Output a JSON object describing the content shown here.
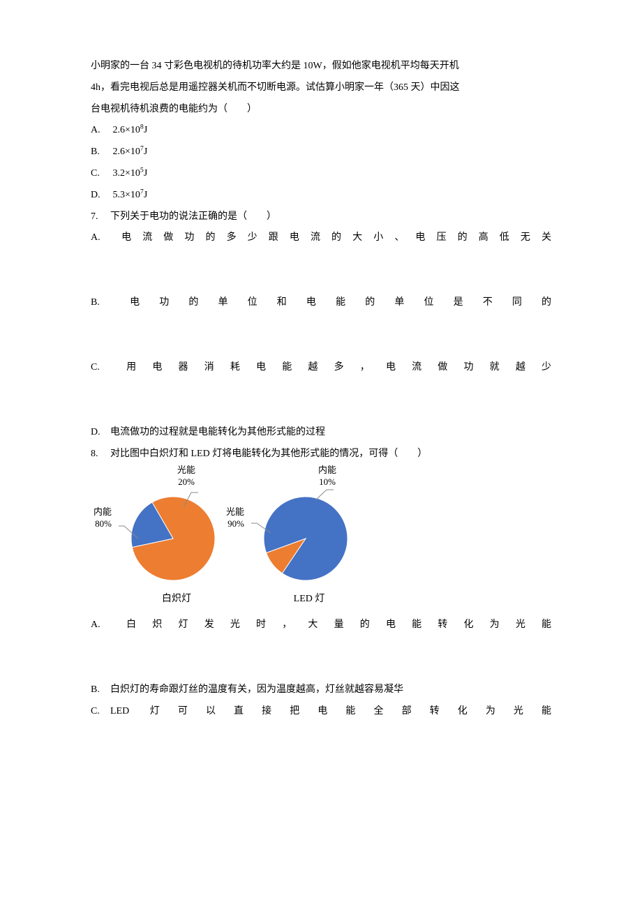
{
  "q6": {
    "stem_line1": "小明家的一台 34 寸彩色电视机的待机功率大约是 10W，假如他家电视机平均每天开机",
    "stem_line2": "4h，看完电视后总是用遥控器关机而不切断电源。试估算小明家一年（365 天）中因这",
    "stem_line3": "台电视机待机浪费的电能约为（　　）",
    "options": {
      "A": {
        "marker": "A.",
        "val_prefix": "2.6×10",
        "exp": "8",
        "val_suffix": "J"
      },
      "B": {
        "marker": "B.",
        "val_prefix": "2.6×10",
        "exp": "7",
        "val_suffix": "J"
      },
      "C": {
        "marker": "C.",
        "val_prefix": "3.2×10",
        "exp": "5",
        "val_suffix": "J"
      },
      "D": {
        "marker": "D.",
        "val_prefix": "5.3×10",
        "exp": "7",
        "val_suffix": "J"
      }
    }
  },
  "q7": {
    "num": "7.",
    "stem": "下列关于电功的说法正确的是（　　）",
    "options": {
      "A": {
        "marker": "A.",
        "text": "电流做功的多少跟电流的大小、电压的高低无关"
      },
      "B": {
        "marker": "B.",
        "text": "电功的单位和电能的单位是不同的"
      },
      "C": {
        "marker": "C.",
        "text": "用电器消耗电能越多，电流做功就越少"
      },
      "D": {
        "marker": "D.",
        "text": "电流做功的过程就是电能转化为其他形式能的过程"
      }
    }
  },
  "q8": {
    "num": "8.",
    "stem": "对比图中白炽灯和 LED 灯将电能转化为其他形式能的情况，可得（　　）",
    "chart1": {
      "type": "pie",
      "name_bottom": "白炽灯",
      "slices": [
        {
          "label": "内能",
          "pct_label": "80%",
          "pct": 80,
          "color": "#ed7d31"
        },
        {
          "label": "光能",
          "pct_label": "20%",
          "pct": 20,
          "color": "#4472c4"
        }
      ],
      "top_label": "光能",
      "top_pct": "20%",
      "side_label": "内能",
      "side_pct": "80%",
      "radius": 60,
      "rotation_start_deg": -30
    },
    "chart2": {
      "type": "pie",
      "name_bottom": "LED 灯",
      "slices": [
        {
          "label": "光能",
          "pct_label": "90%",
          "pct": 90,
          "color": "#4472c4"
        },
        {
          "label": "内能",
          "pct_label": "10%",
          "pct": 10,
          "color": "#ed7d31"
        }
      ],
      "top_label": "内能",
      "top_pct": "10%",
      "side_label": "光能",
      "side_pct": "90%",
      "radius": 60,
      "rotation_start_deg": -110
    },
    "leader_color": "#8a8a8a",
    "options": {
      "A": {
        "marker": "A.",
        "text": "白炽灯发光时，大量的电能转化为光能"
      },
      "B": {
        "marker": "B.",
        "text": "白炽灯的寿命跟灯丝的温度有关，因为温度越高，灯丝就越容易凝华"
      },
      "C": {
        "marker": "C.",
        "text": "LED 灯可以直接把电能全部转化为光能"
      }
    }
  }
}
